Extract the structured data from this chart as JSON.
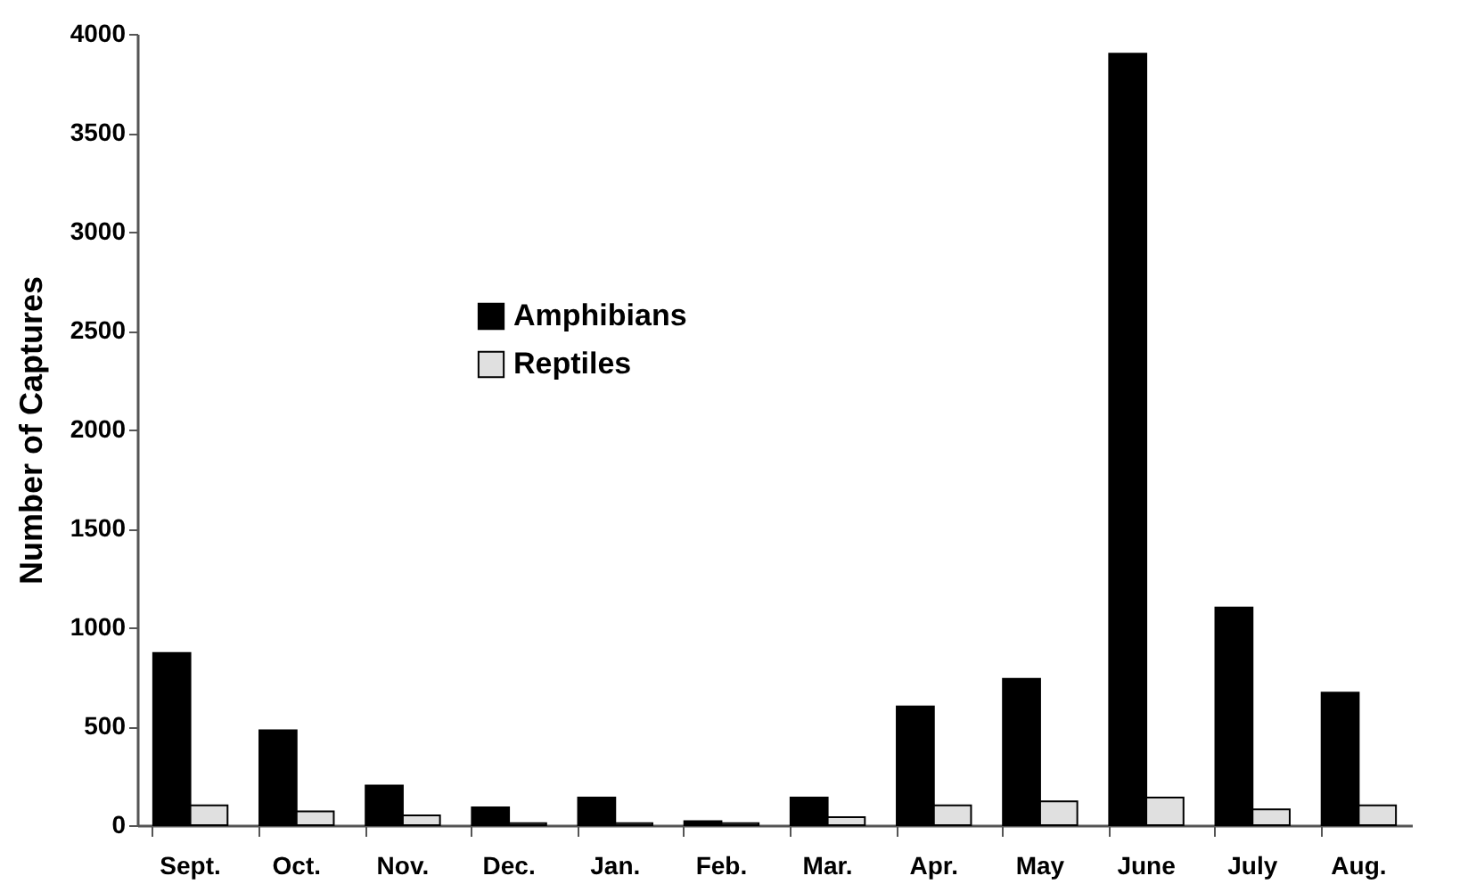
{
  "chart_data": {
    "type": "bar",
    "ylabel": "Number of Captures",
    "categories": [
      "Sept.",
      "Oct.",
      "Nov.",
      "Dec.",
      "Jan.",
      "Feb.",
      "Mar.",
      "Apr.",
      "May",
      "June",
      "July",
      "Aug."
    ],
    "series": [
      {
        "name": "Amphibians",
        "color": "#000000",
        "values": [
          870,
          480,
          200,
          90,
          140,
          20,
          140,
          600,
          740,
          3900,
          1100,
          670
        ]
      },
      {
        "name": "Reptiles",
        "color": "#e0e0e0",
        "values": [
          100,
          70,
          50,
          10,
          10,
          10,
          40,
          100,
          120,
          140,
          80,
          100
        ]
      }
    ],
    "ylim": [
      0,
      4000
    ],
    "yticks": [
      0,
      500,
      1000,
      1500,
      2000,
      2500,
      3000,
      3500,
      4000
    ],
    "grid": false,
    "legend": "top left"
  }
}
